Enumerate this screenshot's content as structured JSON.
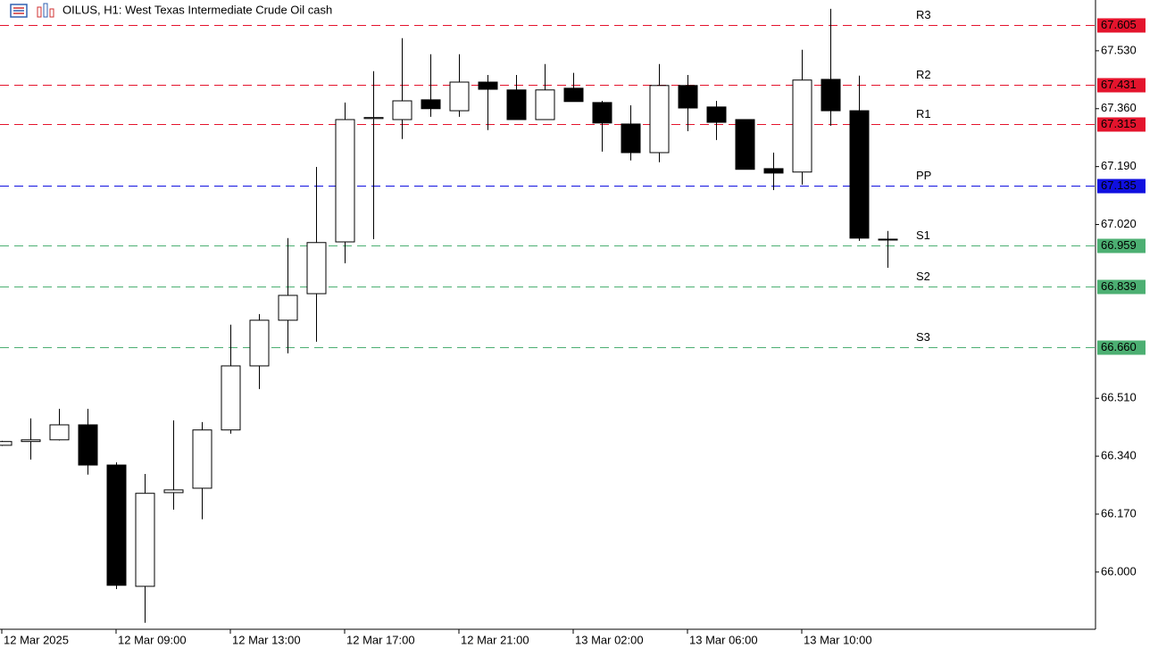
{
  "chart_data": {
    "type": "candlestick",
    "title": "OILUS, H1:  West Texas Intermediate Crude Oil cash",
    "categories": [
      "12 Mar 2025",
      null,
      null,
      null,
      "12 Mar 09:00",
      null,
      null,
      null,
      "12 Mar 13:00",
      null,
      null,
      null,
      "12 Mar 17:00",
      null,
      null,
      null,
      "12 Mar 21:00",
      null,
      null,
      null,
      "13 Mar 02:00",
      null,
      null,
      null,
      "13 Mar 06:00",
      null,
      null,
      null,
      "13 Mar 10:00",
      null,
      null,
      null
    ],
    "open": [
      66.372,
      66.383,
      66.388,
      66.432,
      66.314,
      65.958,
      66.233,
      66.246,
      66.417,
      66.605,
      66.739,
      66.817,
      66.969,
      67.331,
      67.328,
      67.386,
      67.354,
      67.438,
      67.415,
      67.328,
      67.42,
      67.378,
      67.315,
      67.231,
      67.428,
      67.365,
      67.328,
      67.184,
      67.174,
      67.446,
      67.354,
      66.977
    ],
    "high": [
      66.385,
      66.451,
      66.479,
      66.479,
      66.322,
      66.288,
      66.445,
      66.44,
      66.726,
      66.757,
      66.98,
      67.189,
      67.378,
      67.47,
      67.567,
      67.52,
      67.52,
      67.459,
      67.459,
      67.491,
      67.465,
      67.383,
      67.37,
      67.491,
      67.459,
      67.383,
      67.328,
      67.231,
      67.533,
      67.653,
      67.457,
      67.001
    ],
    "low": [
      66.37,
      66.33,
      66.386,
      66.286,
      65.95,
      65.851,
      66.183,
      66.155,
      66.406,
      66.537,
      66.642,
      66.676,
      66.906,
      66.977,
      67.271,
      67.336,
      67.336,
      67.297,
      67.328,
      67.328,
      67.381,
      67.234,
      67.208,
      67.203,
      67.294,
      67.268,
      67.182,
      67.121,
      67.137,
      67.31,
      66.972,
      66.893
    ],
    "close": [
      66.383,
      66.388,
      66.432,
      66.314,
      65.961,
      66.231,
      66.241,
      66.417,
      66.605,
      66.739,
      66.812,
      66.967,
      67.328,
      67.334,
      67.383,
      67.36,
      67.438,
      67.417,
      67.328,
      67.415,
      67.381,
      67.318,
      67.231,
      67.428,
      67.362,
      67.32,
      67.182,
      67.171,
      67.444,
      67.354,
      66.98,
      66.977
    ],
    "up_color": "#ffffff",
    "down_color": "#000000",
    "ylim": [
      65.832,
      67.679
    ],
    "yticks": [
      {
        "value": 67.53,
        "label": "67.530"
      },
      {
        "value": 67.36,
        "label": "67.360"
      },
      {
        "value": 67.19,
        "label": "67.190"
      },
      {
        "value": 67.02,
        "label": "67.020"
      },
      {
        "value": 66.51,
        "label": "66.510"
      },
      {
        "value": 66.34,
        "label": "66.340"
      },
      {
        "value": 66.17,
        "label": "66.170"
      },
      {
        "value": 66.0,
        "label": "66.000"
      }
    ],
    "levels": [
      {
        "name": "R3",
        "value": 67.605,
        "label": "67.605",
        "color": "#e4142d"
      },
      {
        "name": "R2",
        "value": 67.431,
        "label": "67.431",
        "color": "#e4142d"
      },
      {
        "name": "R1",
        "value": 67.315,
        "label": "67.315",
        "color": "#e4142d"
      },
      {
        "name": "PP",
        "value": 67.135,
        "label": "67.135",
        "color": "#1010e0"
      },
      {
        "name": "S1",
        "value": 66.959,
        "label": "66.959",
        "color": "#4caf72"
      },
      {
        "name": "S2",
        "value": 66.839,
        "label": "66.839",
        "color": "#4caf72"
      },
      {
        "name": "S3",
        "value": 66.66,
        "label": "66.660",
        "color": "#4caf72"
      }
    ]
  }
}
